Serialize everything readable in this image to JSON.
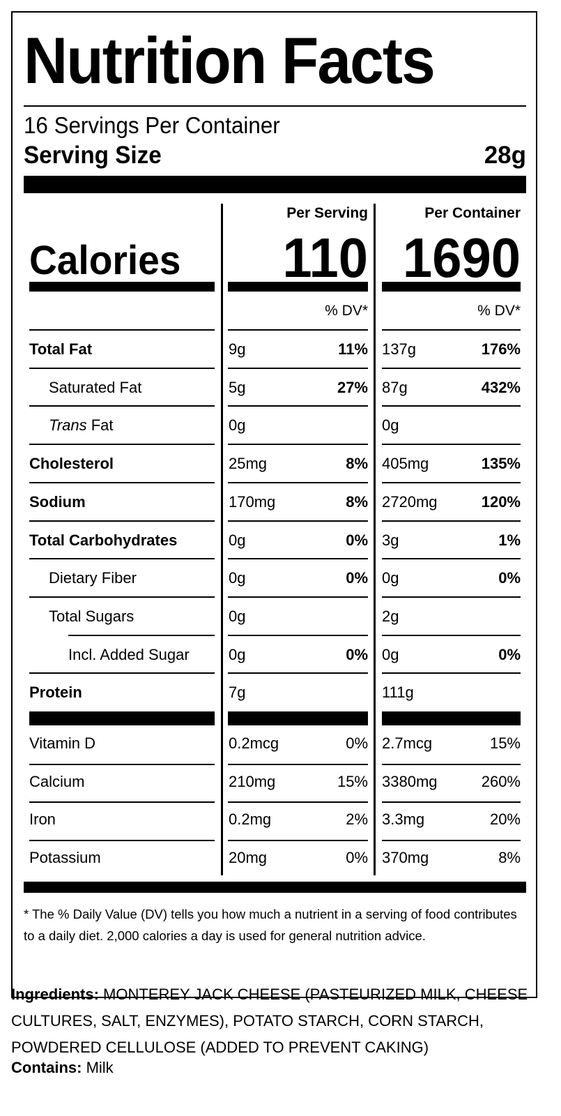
{
  "label": {
    "title": "Nutrition Facts",
    "servings_per_container": "16 Servings Per Container",
    "serving_size_label": "Serving Size",
    "serving_size_value": "28g"
  },
  "columns": {
    "per_serving": "Per Serving",
    "per_container": "Per Container",
    "dv_header": "% DV*"
  },
  "calories": {
    "label": "Calories",
    "per_serving": "110",
    "per_container": "1690"
  },
  "nutrients": [
    {
      "name": "Total Fat",
      "name_italic": "",
      "bold": true,
      "indent": 0,
      "serving_amount": "9g",
      "serving_dv": "11%",
      "container_amount": "137g",
      "container_dv": "176%"
    },
    {
      "name": "Saturated Fat",
      "name_italic": "",
      "bold": false,
      "indent": 1,
      "serving_amount": "5g",
      "serving_dv": "27%",
      "container_amount": "87g",
      "container_dv": "432%"
    },
    {
      "name": " Fat",
      "name_italic": "Trans",
      "bold": false,
      "indent": 1,
      "serving_amount": "0g",
      "serving_dv": "",
      "container_amount": "0g",
      "container_dv": ""
    },
    {
      "name": "Cholesterol",
      "name_italic": "",
      "bold": true,
      "indent": 0,
      "serving_amount": "25mg",
      "serving_dv": "8%",
      "container_amount": "405mg",
      "container_dv": "135%"
    },
    {
      "name": "Sodium",
      "name_italic": "",
      "bold": true,
      "indent": 0,
      "serving_amount": "170mg",
      "serving_dv": "8%",
      "container_amount": "2720mg",
      "container_dv": "120%"
    },
    {
      "name": "Total Carbohydrates",
      "name_italic": "",
      "bold": true,
      "indent": 0,
      "serving_amount": "0g",
      "serving_dv": "0%",
      "container_amount": "3g",
      "container_dv": "1%"
    },
    {
      "name": "Dietary Fiber",
      "name_italic": "",
      "bold": false,
      "indent": 1,
      "serving_amount": "0g",
      "serving_dv": "0%",
      "container_amount": "0g",
      "container_dv": "0%"
    },
    {
      "name": "Total Sugars",
      "name_italic": "",
      "bold": false,
      "indent": 1,
      "serving_amount": "0g",
      "serving_dv": "",
      "container_amount": "2g",
      "container_dv": ""
    },
    {
      "name": "Incl. Added Sugar",
      "name_italic": "",
      "bold": false,
      "indent": 2,
      "serving_amount": "0g",
      "serving_dv": "0%",
      "container_amount": "0g",
      "container_dv": "0%"
    },
    {
      "name": "Protein",
      "name_italic": "",
      "bold": true,
      "indent": 0,
      "serving_amount": "7g",
      "serving_dv": "",
      "container_amount": "111g",
      "container_dv": ""
    }
  ],
  "vitamins": [
    {
      "name": "Vitamin D",
      "serving_amount": "0.2mcg",
      "serving_dv": "0%",
      "container_amount": "2.7mcg",
      "container_dv": "15%"
    },
    {
      "name": "Calcium",
      "serving_amount": "210mg",
      "serving_dv": "15%",
      "container_amount": "3380mg",
      "container_dv": "260%"
    },
    {
      "name": "Iron",
      "serving_amount": "0.2mg",
      "serving_dv": "2%",
      "container_amount": "3.3mg",
      "container_dv": "20%"
    },
    {
      "name": "Potassium",
      "serving_amount": "20mg",
      "serving_dv": "0%",
      "container_amount": "370mg",
      "container_dv": "8%"
    }
  ],
  "footnote": "* The % Daily Value (DV) tells you how much a nutrient in a serving of food contributes to a daily diet. 2,000 calories a day is used for general nutrition advice.",
  "ingredients": {
    "label": "Ingredients:",
    "text": " MONTEREY JACK CHEESE (PASTEURIZED MILK, CHEESE CULTURES, SALT, ENZYMES), POTATO STARCH, CORN STARCH, POWDERED CELLULOSE (ADDED TO PREVENT CAKING)"
  },
  "contains": {
    "label": "Contains:",
    "text": " Milk"
  }
}
